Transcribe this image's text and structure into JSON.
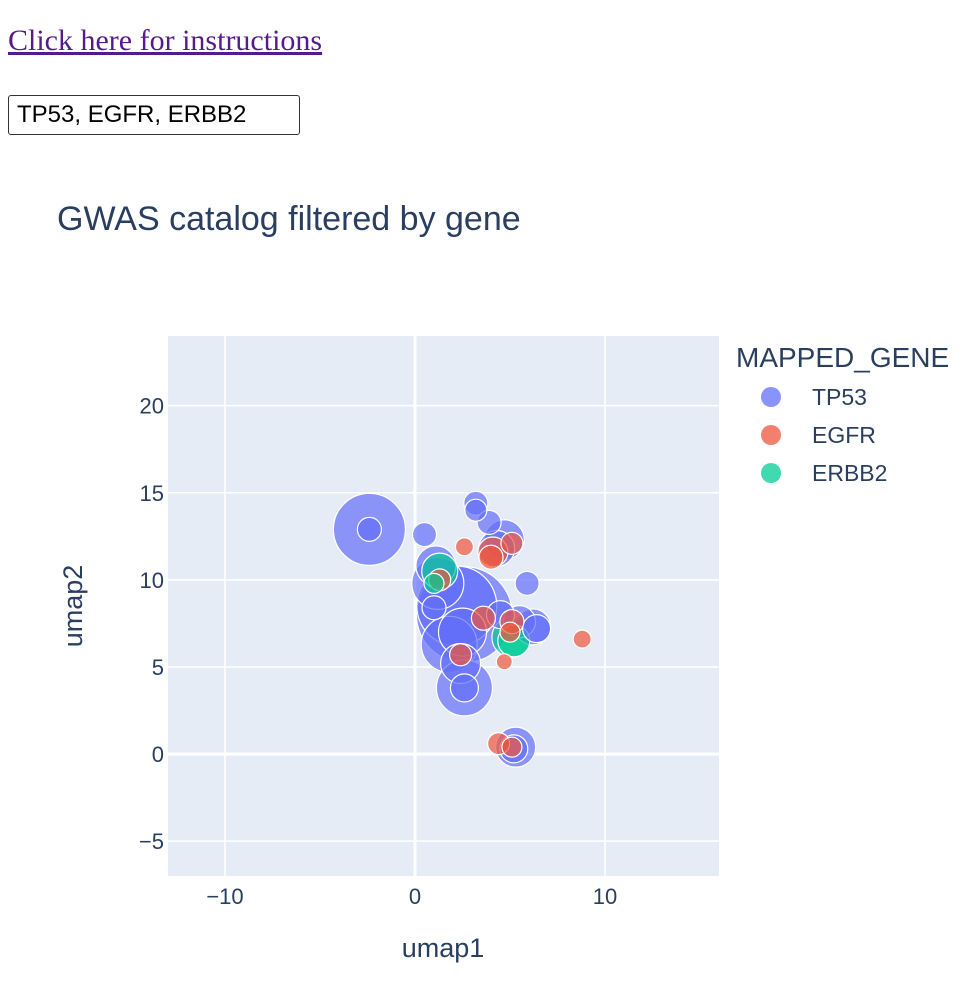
{
  "link": {
    "label": "Click here for instructions"
  },
  "search": {
    "value": "TP53, EGFR, ERBB2"
  },
  "chart_data": {
    "type": "scatter",
    "title": "GWAS catalog filtered by gene",
    "xlabel": "umap1",
    "ylabel": "umap2",
    "xlim": [
      -13,
      16
    ],
    "ylim": [
      -7,
      24
    ],
    "xticks": [
      -10,
      0,
      10
    ],
    "yticks": [
      -5,
      0,
      5,
      10,
      15,
      20
    ],
    "grid": true,
    "legend_title": "MAPPED_GENE",
    "legend_position": "right",
    "series": [
      {
        "name": "TP53",
        "color": "#636efa",
        "points": [
          {
            "x": -2.4,
            "y": 12.9,
            "size": 36
          },
          {
            "x": -2.4,
            "y": 12.9,
            "size": 12
          },
          {
            "x": 0.5,
            "y": 12.6,
            "size": 12
          },
          {
            "x": 3.2,
            "y": 14.4,
            "size": 12
          },
          {
            "x": 3.2,
            "y": 14.0,
            "size": 11
          },
          {
            "x": 3.9,
            "y": 13.3,
            "size": 12
          },
          {
            "x": 4.7,
            "y": 12.3,
            "size": 20
          },
          {
            "x": 4.3,
            "y": 11.8,
            "size": 18
          },
          {
            "x": 1.1,
            "y": 10.8,
            "size": 20
          },
          {
            "x": 1.2,
            "y": 9.8,
            "size": 26
          },
          {
            "x": 1.0,
            "y": 8.4,
            "size": 12
          },
          {
            "x": 2.2,
            "y": 8.5,
            "size": 40
          },
          {
            "x": 2.6,
            "y": 8.0,
            "size": 48
          },
          {
            "x": 1.8,
            "y": 6.3,
            "size": 28
          },
          {
            "x": 2.5,
            "y": 7.0,
            "size": 24
          },
          {
            "x": 2.4,
            "y": 5.2,
            "size": 20
          },
          {
            "x": 2.6,
            "y": 3.8,
            "size": 28
          },
          {
            "x": 2.6,
            "y": 3.8,
            "size": 14
          },
          {
            "x": 4.5,
            "y": 8.0,
            "size": 14
          },
          {
            "x": 5.5,
            "y": 7.6,
            "size": 16
          },
          {
            "x": 6.2,
            "y": 7.3,
            "size": 18
          },
          {
            "x": 6.4,
            "y": 7.2,
            "size": 14
          },
          {
            "x": 5.9,
            "y": 9.8,
            "size": 12
          },
          {
            "x": 5.3,
            "y": 0.4,
            "size": 20
          },
          {
            "x": 5.2,
            "y": 0.3,
            "size": 14
          }
        ]
      },
      {
        "name": "EGFR",
        "color": "#ef553b",
        "points": [
          {
            "x": 2.6,
            "y": 11.9,
            "size": 9
          },
          {
            "x": 4.1,
            "y": 11.6,
            "size": 15
          },
          {
            "x": 4.0,
            "y": 11.3,
            "size": 12
          },
          {
            "x": 5.1,
            "y": 12.1,
            "size": 11
          },
          {
            "x": 1.3,
            "y": 10.0,
            "size": 11
          },
          {
            "x": 3.6,
            "y": 7.8,
            "size": 12
          },
          {
            "x": 5.1,
            "y": 7.6,
            "size": 12
          },
          {
            "x": 5.0,
            "y": 7.0,
            "size": 10
          },
          {
            "x": 2.4,
            "y": 5.7,
            "size": 11
          },
          {
            "x": 4.7,
            "y": 5.3,
            "size": 8
          },
          {
            "x": 8.8,
            "y": 6.6,
            "size": 9
          },
          {
            "x": 4.4,
            "y": 0.6,
            "size": 11
          },
          {
            "x": 5.1,
            "y": 0.4,
            "size": 10
          }
        ]
      },
      {
        "name": "ERBB2",
        "color": "#00cc96",
        "points": [
          {
            "x": 1.3,
            "y": 10.5,
            "size": 18
          },
          {
            "x": 1.0,
            "y": 9.8,
            "size": 10
          },
          {
            "x": 5.1,
            "y": 6.7,
            "size": 20
          },
          {
            "x": 5.2,
            "y": 6.5,
            "size": 16
          }
        ]
      }
    ]
  }
}
